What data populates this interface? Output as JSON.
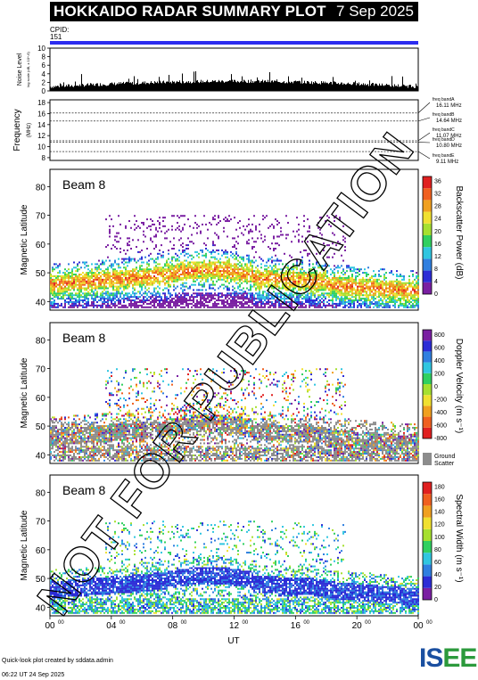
{
  "header": {
    "title": "HOKKAIDO RADAR SUMMARY PLOT",
    "date": "7 Sep 2025",
    "cpid_label": "CPID:",
    "cpid_value": "151"
  },
  "noise_panel": {
    "ylabel": "Noise Level",
    "ylabel_sub": "log scale (dB, x 10^-6)",
    "yticks": [
      "0",
      "2",
      "4",
      "6",
      "8",
      "10"
    ],
    "ylim": [
      0,
      10
    ]
  },
  "freq_panel": {
    "ylabel": "Frequency",
    "ylabel_sub": "(MHz)",
    "yticks": [
      "8",
      "10",
      "12",
      "14",
      "16",
      "18"
    ],
    "ylim": [
      7.5,
      18.5
    ],
    "bands": [
      {
        "label": "freq bandA",
        "value": "16.11 MHz",
        "mhz": 16.11
      },
      {
        "label": "freq bandB",
        "value": "14.64 MHz",
        "mhz": 14.64
      },
      {
        "label": "freq bandC",
        "value": "11.07 MHz",
        "mhz": 11.07
      },
      {
        "label": "freq bandD",
        "value": "10.80 MHz",
        "mhz": 10.8
      },
      {
        "label": "freq bandE",
        "value": "9.11 MHz",
        "mhz": 9.11
      }
    ]
  },
  "panels": [
    {
      "beam": "Beam  8",
      "ylabel": "Magnetic Latitude",
      "yticks": [
        "40",
        "50",
        "60",
        "70",
        "80"
      ],
      "ylim": [
        37,
        86
      ],
      "colorbar_title": "Backscatter Power (dB)",
      "colorbar_ticks": [
        "0",
        "4",
        "8",
        "12",
        "16",
        "20",
        "24",
        "28",
        "32",
        "36"
      ],
      "colors": [
        "#7a1fa2",
        "#2c2cd6",
        "#2f7fe0",
        "#30c6e0",
        "#30d060",
        "#a6e030",
        "#f0e030",
        "#f0a020",
        "#f06020",
        "#e02020"
      ]
    },
    {
      "beam": "Beam  8",
      "ylabel": "Magnetic Latitude",
      "yticks": [
        "40",
        "50",
        "60",
        "70",
        "80"
      ],
      "ylim": [
        37,
        86
      ],
      "colorbar_title": "Doppler Velocity (m s⁻¹)",
      "colorbar_ticks": [
        "-800",
        "-600",
        "-400",
        "-200",
        "0",
        "200",
        "400",
        "600",
        "800"
      ],
      "colors": [
        "#e02020",
        "#f06020",
        "#f0a020",
        "#f0e030",
        "#a6e030",
        "#30d060",
        "#30c6e0",
        "#2f7fe0",
        "#2c2cd6",
        "#7a1fa2"
      ],
      "ground_label_1": "Ground",
      "ground_label_2": "Scatter"
    },
    {
      "beam": "Beam  8",
      "ylabel": "Magnetic Latitude",
      "yticks": [
        "40",
        "50",
        "60",
        "70",
        "80"
      ],
      "ylim": [
        37,
        86
      ],
      "colorbar_title": "Spectral Width (m s⁻¹)",
      "colorbar_ticks": [
        "0",
        "20",
        "40",
        "60",
        "80",
        "100",
        "120",
        "140",
        "160",
        "180"
      ],
      "colors": [
        "#7a1fa2",
        "#2c2cd6",
        "#2f7fe0",
        "#30c6e0",
        "#30d060",
        "#a6e030",
        "#f0e030",
        "#f0a020",
        "#f06020",
        "#e02020"
      ]
    }
  ],
  "xaxis": {
    "label": "UT",
    "ticks": [
      "00",
      "04",
      "08",
      "12",
      "16",
      "20",
      "00"
    ],
    "tick_sup": "00"
  },
  "watermark": "NOT FOR PUBLICATION",
  "footer": {
    "line1": "Quick-look plot created by sddata.admin",
    "line2": "06:22 UT 24 Sep 2025"
  },
  "logo": {
    "part1": "IS",
    "part2": "EE"
  }
}
